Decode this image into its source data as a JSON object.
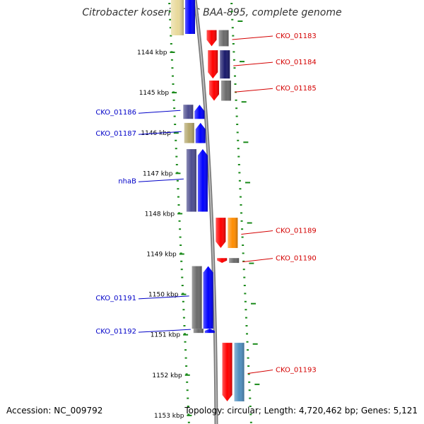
{
  "title": "Citrobacter koseri ATCC BAA-895, complete genome",
  "footer": {
    "accession": "Accession: NC_009792",
    "summary": "Topology: circular; Length: 4,720,462 bp; Genes: 5,121"
  },
  "colors": {
    "forward_strand": "#0000ff",
    "reverse_strand": "#ff0000",
    "ticks": "#1a8a1a",
    "backbone": "#808080",
    "label_left": "#0000c8",
    "label_right": "#d40000"
  },
  "ruler": [
    {
      "kbp": 1144,
      "label": "1144 kbp"
    },
    {
      "kbp": 1145,
      "label": "1145 kbp"
    },
    {
      "kbp": 1146,
      "label": "1146 kbp"
    },
    {
      "kbp": 1147,
      "label": "1147 kbp"
    },
    {
      "kbp": 1148,
      "label": "1148 kbp"
    },
    {
      "kbp": 1149,
      "label": "1149 kbp"
    },
    {
      "kbp": 1150,
      "label": "1150 kbp"
    },
    {
      "kbp": 1151,
      "label": "1151 kbp"
    },
    {
      "kbp": 1152,
      "label": "1152 kbp"
    },
    {
      "kbp": 1153,
      "label": "1153 kbp"
    }
  ],
  "genes_left": [
    {
      "label": "CKO_01186",
      "start_kbp": 1145.3,
      "end_kbp": 1145.65,
      "cog_color": "#4d4d8f"
    },
    {
      "label": "CKO_01187",
      "start_kbp": 1145.75,
      "end_kbp": 1146.25,
      "cog_color": "#b3a66b"
    },
    {
      "label": "nhaB",
      "start_kbp": 1146.4,
      "end_kbp": 1147.95,
      "cog_color": "#4d4d8f"
    },
    {
      "label": "CKO_01191",
      "start_kbp": 1149.3,
      "end_kbp": 1150.85,
      "cog_color": "#6b6b6b"
    },
    {
      "label": "CKO_01192",
      "start_kbp": 1150.85,
      "end_kbp": 1150.95,
      "cog_color": "#6b6b6b"
    }
  ],
  "genes_right": [
    {
      "label": "CKO_01183",
      "start_kbp": 1143.45,
      "end_kbp": 1143.85,
      "cog_color": "#6b6b6b"
    },
    {
      "label": "CKO_01184",
      "start_kbp": 1143.95,
      "end_kbp": 1144.65,
      "cog_color": "#1a1a6b"
    },
    {
      "label": "CKO_01185",
      "start_kbp": 1144.7,
      "end_kbp": 1145.2,
      "cog_color": "#6b6b6b"
    },
    {
      "label": "CKO_01189",
      "start_kbp": 1148.1,
      "end_kbp": 1148.85,
      "cog_color": "#ff8c00"
    },
    {
      "label": "CKO_01190",
      "start_kbp": 1149.1,
      "end_kbp": 1149.22,
      "cog_color": "#6b6b6b"
    },
    {
      "label": "CKO_01193",
      "start_kbp": 1151.2,
      "end_kbp": 1152.65,
      "cog_color": "#4f8fbf"
    }
  ]
}
